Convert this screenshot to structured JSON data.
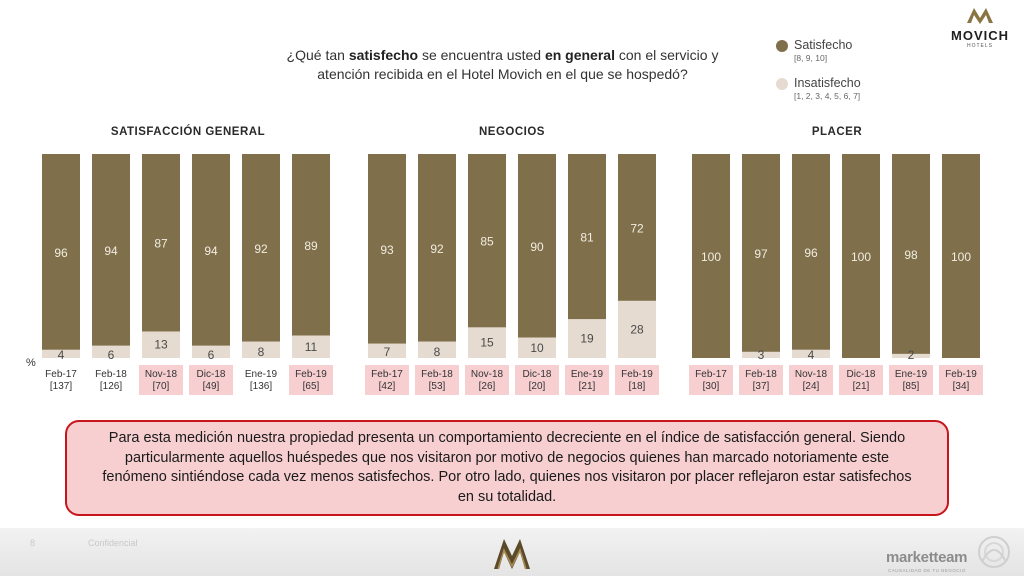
{
  "question": {
    "part1": "¿Qué tan ",
    "bold1": "satisfecho",
    "part2": " se encuentra usted ",
    "bold2": "en general",
    "part3": " con el servicio y atención recibida en el Hotel Movich en el que se hospedó?"
  },
  "legend": {
    "satisfied_label": "Satisfecho",
    "satisfied_range": "[8, 9, 10]",
    "unsatisfied_label": "Insatisfecho",
    "unsatisfied_range": "[1, 2, 3, 4, 5, 6, 7]"
  },
  "logo": {
    "brand": "MOVICH",
    "sub": "HOTELS"
  },
  "colors": {
    "satisfied": "#7f6f4a",
    "unsatisfied": "#e5dbd0",
    "highlight": "#f7cfd1",
    "border": "#c8151b"
  },
  "chart_data": {
    "type": "bar",
    "stacked": true,
    "percent_symbol": "%",
    "ylim": [
      0,
      100
    ],
    "groups": [
      {
        "title": "SATISFACCIÓN GENERAL",
        "categories": [
          "Feb-17",
          "Feb-18",
          "Nov-18",
          "Dic-18",
          "Ene-19",
          "Feb-19"
        ],
        "base": [
          "[137]",
          "[126]",
          "[70]",
          "[49]",
          "[136]",
          "[65]"
        ],
        "highlighted": [
          false,
          false,
          true,
          true,
          false,
          true
        ],
        "series": [
          {
            "name": "Satisfecho",
            "values": [
              96,
              94,
              87,
              94,
              92,
              89
            ]
          },
          {
            "name": "Insatisfecho",
            "values": [
              4,
              6,
              13,
              6,
              8,
              11
            ]
          }
        ]
      },
      {
        "title": "NEGOCIOS",
        "categories": [
          "Feb-17",
          "Feb-18",
          "Nov-18",
          "Dic-18",
          "Ene-19",
          "Feb-19"
        ],
        "base": [
          "[42]",
          "[53]",
          "[26]",
          "[20]",
          "[21]",
          "[18]"
        ],
        "highlighted": [
          true,
          true,
          true,
          true,
          true,
          true
        ],
        "series": [
          {
            "name": "Satisfecho",
            "values": [
              93,
              92,
              85,
              90,
              81,
              72
            ]
          },
          {
            "name": "Insatisfecho",
            "values": [
              7,
              8,
              15,
              10,
              19,
              28
            ]
          }
        ]
      },
      {
        "title": "PLACER",
        "categories": [
          "Feb-17",
          "Feb-18",
          "Nov-18",
          "Dic-18",
          "Ene-19",
          "Feb-19"
        ],
        "base": [
          "[30]",
          "[37]",
          "[24]",
          "[21]",
          "[85]",
          "[34]"
        ],
        "highlighted": [
          true,
          true,
          true,
          true,
          true,
          true
        ],
        "series": [
          {
            "name": "Satisfecho",
            "values": [
              100,
              97,
              96,
              100,
              98,
              100
            ]
          },
          {
            "name": "Insatisfecho",
            "values": [
              0,
              3,
              4,
              0,
              2,
              0
            ]
          }
        ]
      }
    ]
  },
  "message": "Para esta medición nuestra propiedad presenta un comportamiento decreciente en el índice de satisfacción general. Siendo particularmente aquellos huéspedes que nos visitaron por motivo de negocios quienes han marcado notoriamente este fenómeno sintiéndose cada vez menos satisfechos. Por otro lado, quienes nos visitaron por placer reflejaron estar satisfechos en su totalidad.",
  "footer": {
    "page_number": "8",
    "confidential": "Confidencial",
    "brand": "marketteam",
    "brand_sub": "CAUSALIDAD DE TU NEGOCIO"
  }
}
